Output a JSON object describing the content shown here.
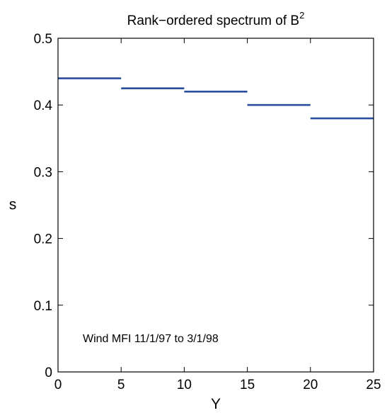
{
  "chart_data": {
    "type": "line",
    "title": "Rank−ordered spectrum of B",
    "title_superscript": "2",
    "xlabel": "Y",
    "ylabel": "s",
    "xlim": [
      0,
      25
    ],
    "ylim": [
      0,
      0.5
    ],
    "x_ticks": [
      "0",
      "5",
      "10",
      "15",
      "20",
      "25"
    ],
    "y_ticks": [
      "0",
      "0.1",
      "0.2",
      "0.3",
      "0.4",
      "0.5"
    ],
    "annotation": "Wind MFI 11/1/97 to 3/1/98",
    "grid": false,
    "line_color": "#2b4ea0",
    "segments": [
      {
        "x": [
          0,
          5
        ],
        "y": 0.44
      },
      {
        "x": [
          5,
          10
        ],
        "y": 0.425
      },
      {
        "x": [
          10,
          15
        ],
        "y": 0.42
      },
      {
        "x": [
          15,
          20
        ],
        "y": 0.4
      },
      {
        "x": [
          20,
          25
        ],
        "y": 0.38
      }
    ]
  }
}
